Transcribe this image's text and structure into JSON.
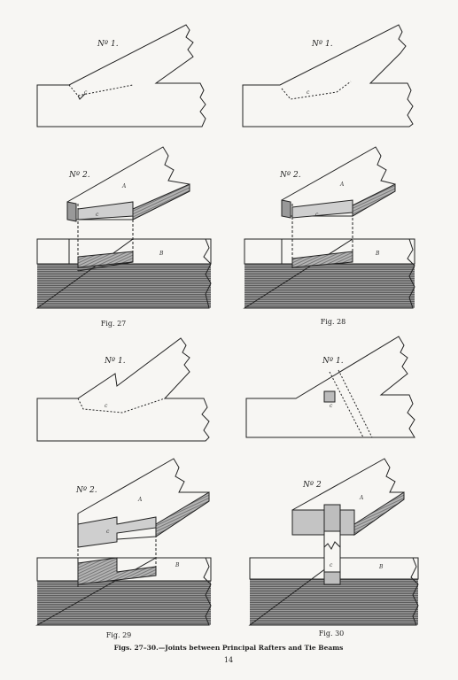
{
  "figures": [
    {
      "caption": "Fig. 27",
      "no1": "Nº 1.",
      "no2": "Nº 2.",
      "letter_a": "A",
      "letter_b": "B",
      "letter_c": "c"
    },
    {
      "caption": "Fig. 28",
      "no1": "Nº 1.",
      "no2": "Nº 2.",
      "letter_a": "A",
      "letter_b": "B",
      "letter_c": "c"
    },
    {
      "caption": "Fig. 29",
      "no1": "Nº 1.",
      "no2": "Nº 2.",
      "letter_a": "A",
      "letter_b": "B",
      "letter_c": "c"
    },
    {
      "caption": "Fig. 30",
      "no1": "Nº 1.",
      "no2": "Nº 2",
      "letter_a": "A",
      "letter_b": "B",
      "letter_c": "c"
    }
  ],
  "plate_caption": "Figs. 27–30.—Joints between Principal Rafters and Tie Beams",
  "page_number": "14",
  "colors": {
    "ink": "#222222",
    "hatch": "#7a7a7a",
    "shade": "#a9a9a9",
    "paper": "#f7f6f3"
  }
}
